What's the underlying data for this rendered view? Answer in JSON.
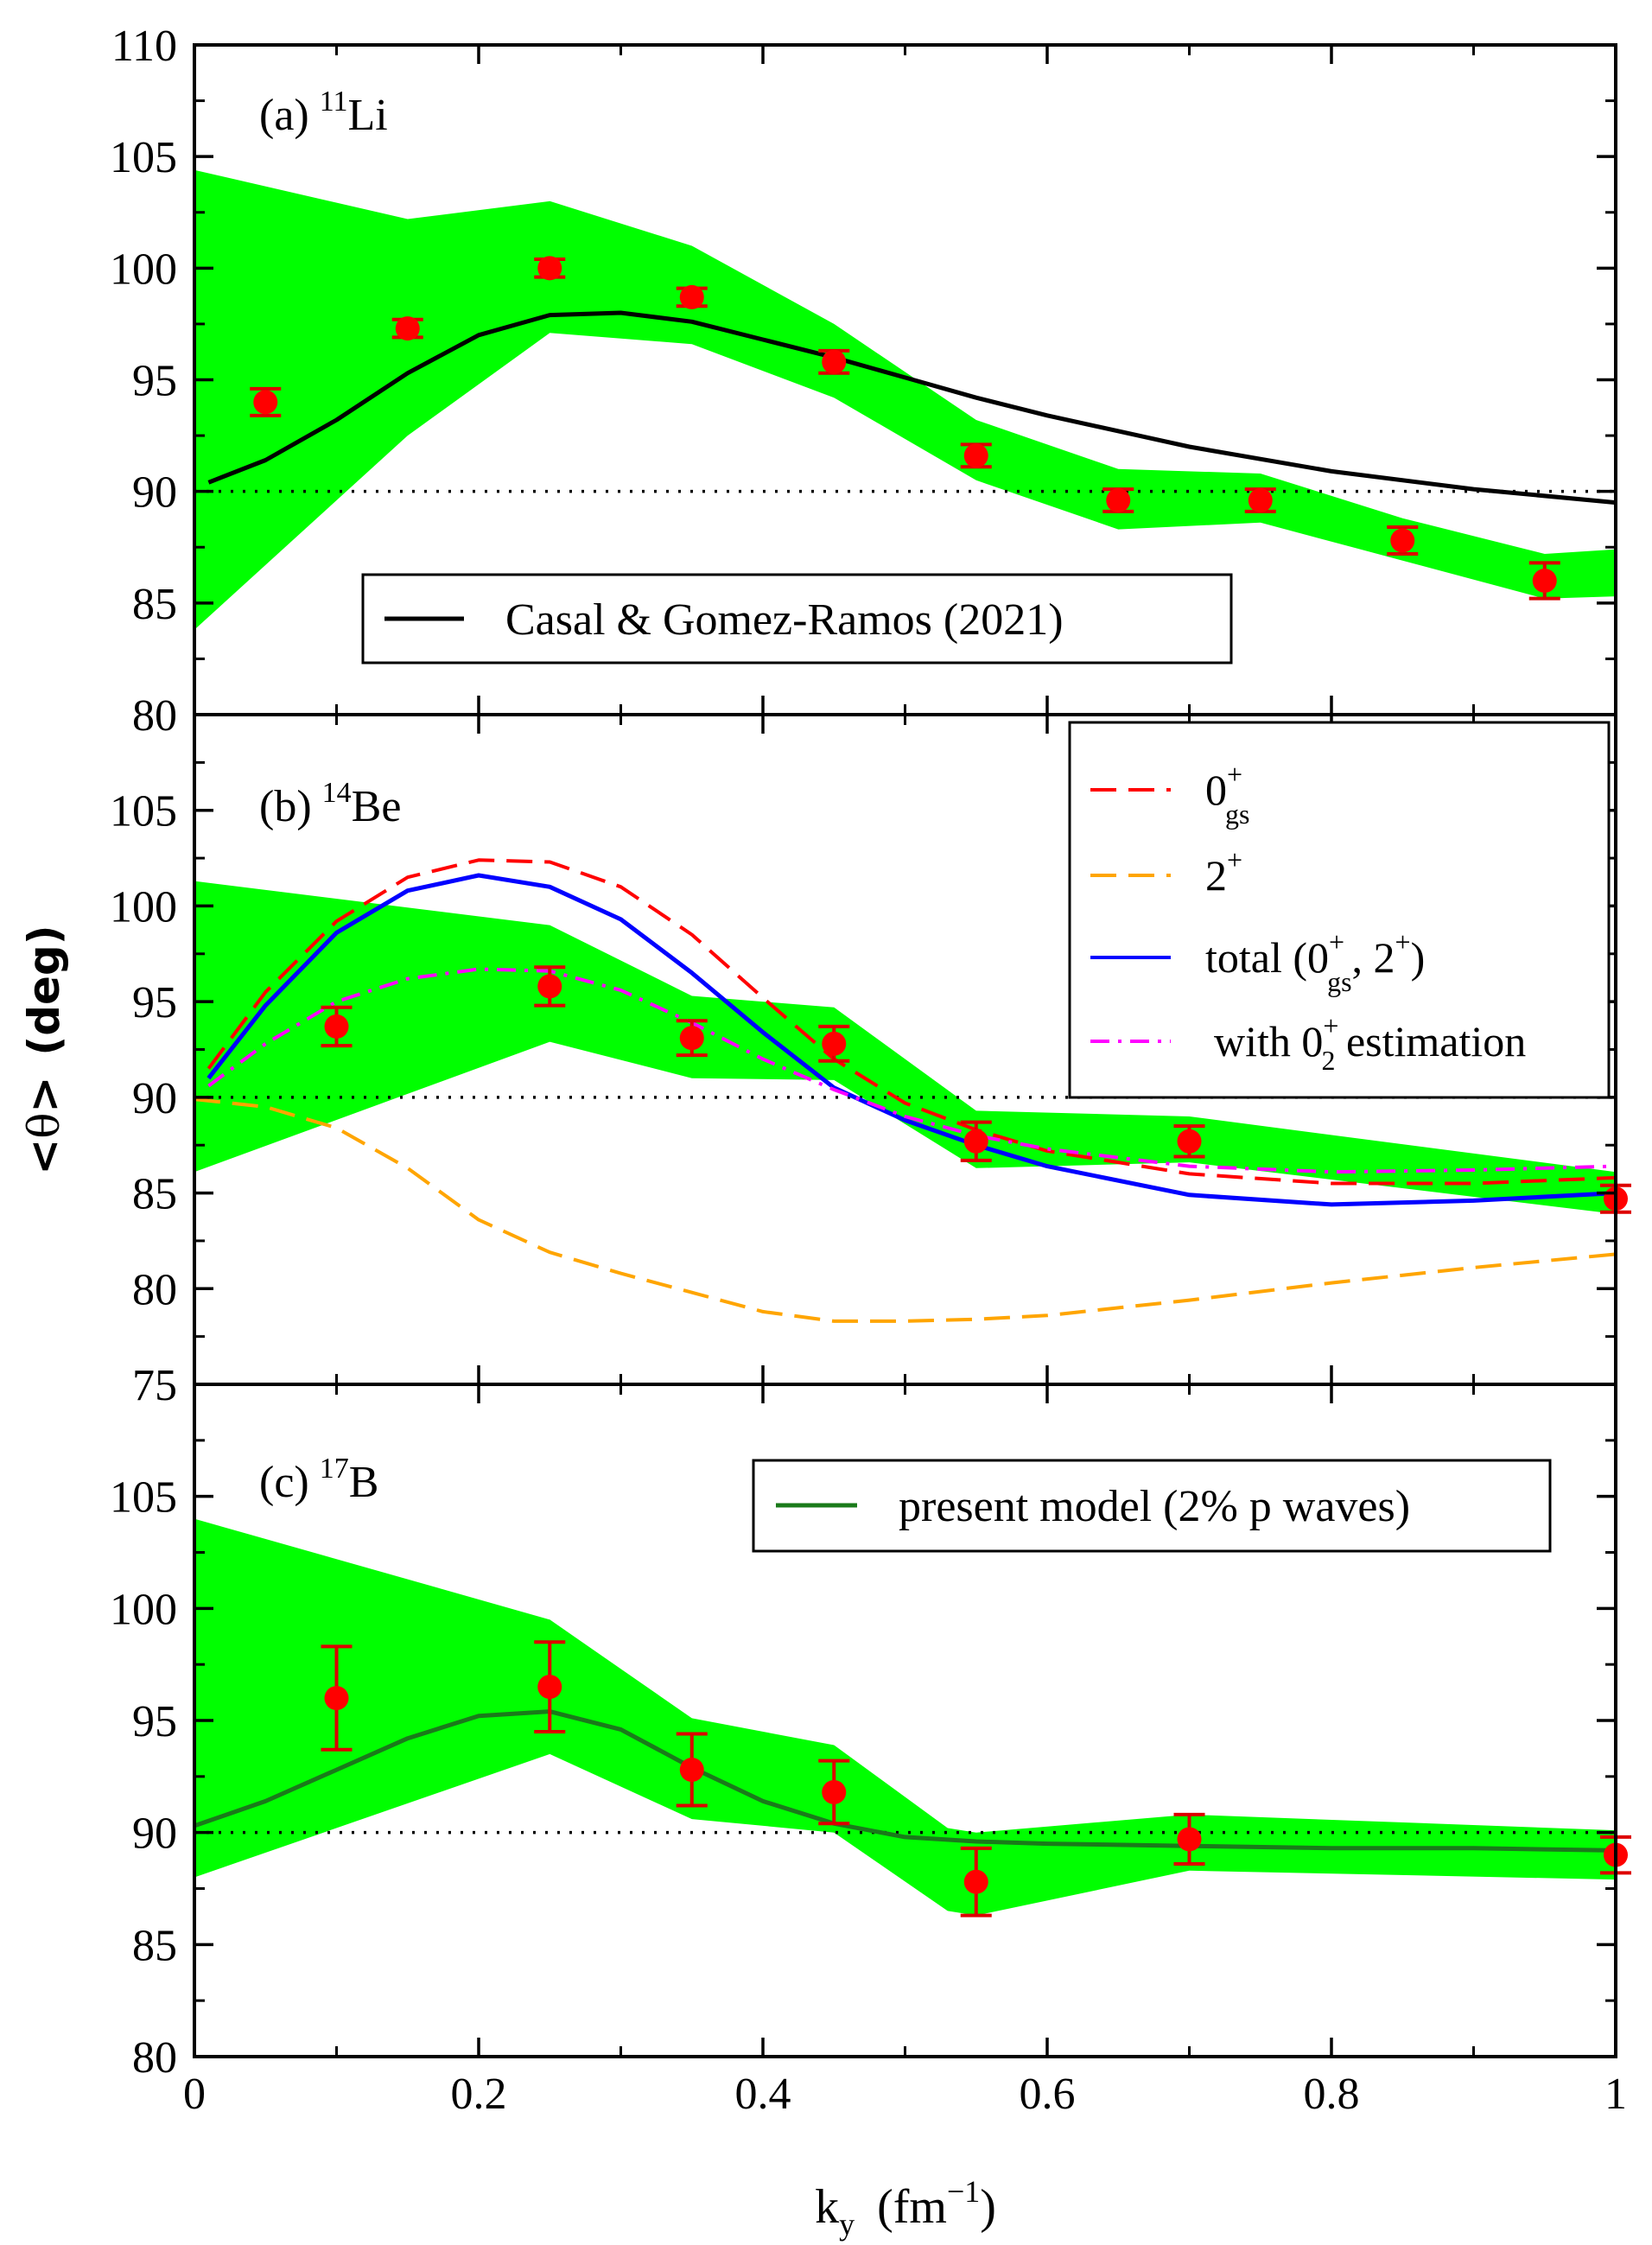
{
  "figure": {
    "xlabel_main": "k",
    "xlabel_sub": "y",
    "xlabel_unit_open": "(fm",
    "xlabel_unit_exp": "−1",
    "xlabel_unit_close": ")",
    "ylabel_open": "<",
    "ylabel_theta": "θ",
    "ylabel_close": ">",
    "ylabel_unit": "(deg)",
    "x_ticks": [
      "0",
      "0.2",
      "0.4",
      "0.6",
      "0.8",
      "1"
    ]
  },
  "colors": {
    "band": "#00ff00",
    "points": "#ff0000",
    "errorbars": "#dd0000",
    "reference_line": "#000000",
    "casal": "#000000",
    "gs": "#ff0000",
    "two_plus": "#ffa500",
    "total": "#0000ff",
    "estimation": "#ff00ff",
    "present_model": "#1a7a1a"
  },
  "chart_data": [
    {
      "type": "line",
      "panel": "a",
      "label_prefix": "(a)",
      "nucleus_mass": "11",
      "nucleus_symbol": "Li",
      "xlim": [
        0,
        1
      ],
      "ylim": [
        80,
        110
      ],
      "y_ticks": [
        "80",
        "85",
        "90",
        "95",
        "100",
        "105",
        "110"
      ],
      "reference_y": 90,
      "band": {
        "x": [
          0.0,
          0.15,
          0.25,
          0.35,
          0.45,
          0.55,
          0.65,
          0.75,
          0.85,
          0.95,
          1.0
        ],
        "upper": [
          104.4,
          102.2,
          103.0,
          101.0,
          97.5,
          93.2,
          91.0,
          90.8,
          88.8,
          87.2,
          87.4
        ],
        "lower": [
          83.8,
          92.5,
          97.1,
          96.6,
          94.2,
          90.5,
          88.3,
          88.6,
          86.9,
          85.2,
          85.3
        ]
      },
      "points": {
        "x": [
          0.05,
          0.15,
          0.25,
          0.35,
          0.45,
          0.55,
          0.65,
          0.75,
          0.85,
          0.95
        ],
        "y": [
          94.0,
          97.3,
          100.0,
          98.7,
          95.8,
          91.6,
          89.6,
          89.6,
          87.8,
          86.0
        ],
        "err": [
          0.6,
          0.4,
          0.4,
          0.4,
          0.5,
          0.5,
          0.5,
          0.5,
          0.6,
          0.8
        ]
      },
      "series": [
        {
          "name": "Casal & Gomez-Ramos (2021)",
          "color_key": "casal",
          "dash": "solid",
          "x": [
            0.01,
            0.05,
            0.1,
            0.15,
            0.2,
            0.25,
            0.3,
            0.35,
            0.4,
            0.45,
            0.5,
            0.55,
            0.6,
            0.7,
            0.8,
            0.9,
            1.0
          ],
          "y": [
            90.4,
            91.4,
            93.2,
            95.3,
            97.0,
            97.9,
            98.0,
            97.6,
            96.8,
            96.0,
            95.1,
            94.2,
            93.4,
            92.0,
            90.9,
            90.1,
            89.5
          ]
        }
      ],
      "legend": {
        "entries": [
          "Casal & Gomez-Ramos (2021)"
        ]
      }
    },
    {
      "type": "line",
      "panel": "b",
      "label_prefix": "(b)",
      "nucleus_mass": "14",
      "nucleus_symbol": "Be",
      "xlim": [
        0,
        1
      ],
      "ylim": [
        75,
        110
      ],
      "y_ticks": [
        "75",
        "80",
        "85",
        "90",
        "95",
        "100",
        "105"
      ],
      "reference_y": 90,
      "band": {
        "x": [
          0.0,
          0.25,
          0.35,
          0.45,
          0.55,
          0.7,
          1.0
        ],
        "upper": [
          101.3,
          99.0,
          95.3,
          94.7,
          89.3,
          89.0,
          86.1
        ],
        "lower": [
          86.1,
          92.9,
          91.0,
          90.9,
          86.3,
          86.6,
          83.9
        ]
      },
      "points": {
        "x": [
          0.1,
          0.25,
          0.35,
          0.45,
          0.55,
          0.7,
          1.0
        ],
        "y": [
          93.7,
          95.8,
          93.1,
          92.8,
          87.7,
          87.7,
          84.7
        ],
        "err": [
          1.0,
          1.0,
          0.9,
          0.9,
          1.0,
          0.8,
          0.7
        ]
      },
      "series": [
        {
          "name": "0gs+",
          "color_key": "gs",
          "dash": "dashed",
          "x": [
            0.01,
            0.05,
            0.1,
            0.15,
            0.2,
            0.25,
            0.3,
            0.35,
            0.4,
            0.45,
            0.5,
            0.55,
            0.6,
            0.7,
            0.8,
            0.9,
            1.0
          ],
          "y": [
            91.5,
            95.5,
            99.2,
            101.5,
            102.4,
            102.3,
            101.0,
            98.5,
            95.2,
            92.0,
            89.7,
            88.3,
            87.2,
            86.0,
            85.5,
            85.5,
            85.8
          ]
        },
        {
          "name": "2+",
          "color_key": "two_plus",
          "dash": "dashed",
          "x": [
            0.0,
            0.05,
            0.1,
            0.15,
            0.2,
            0.25,
            0.3,
            0.35,
            0.4,
            0.45,
            0.5,
            0.55,
            0.6,
            0.7,
            0.8,
            0.9,
            1.0
          ],
          "y": [
            89.9,
            89.5,
            88.4,
            86.3,
            83.6,
            81.9,
            80.8,
            79.8,
            78.8,
            78.3,
            78.3,
            78.4,
            78.6,
            79.4,
            80.3,
            81.1,
            81.8
          ]
        },
        {
          "name": "total (0gs+, 2+)",
          "color_key": "total",
          "dash": "solid",
          "x": [
            0.01,
            0.05,
            0.1,
            0.15,
            0.2,
            0.25,
            0.3,
            0.35,
            0.4,
            0.45,
            0.5,
            0.55,
            0.6,
            0.7,
            0.8,
            0.9,
            1.0
          ],
          "y": [
            91.0,
            94.8,
            98.6,
            100.8,
            101.6,
            101.0,
            99.3,
            96.5,
            93.4,
            90.5,
            88.8,
            87.5,
            86.4,
            84.9,
            84.4,
            84.6,
            85.0
          ]
        },
        {
          "name": "with 02+ estimation",
          "color_key": "estimation",
          "dash": "dashdot",
          "x": [
            0.01,
            0.05,
            0.1,
            0.15,
            0.2,
            0.25,
            0.3,
            0.35,
            0.4,
            0.45,
            0.5,
            0.55,
            0.6,
            0.7,
            0.8,
            0.9,
            1.0
          ],
          "y": [
            90.6,
            92.8,
            95.0,
            96.2,
            96.7,
            96.6,
            95.6,
            93.9,
            92.0,
            90.4,
            89.0,
            88.0,
            87.3,
            86.4,
            86.1,
            86.2,
            86.4
          ]
        }
      ],
      "legend": {
        "entry1_main": "0",
        "entry1_sup": "+",
        "entry1_sub": "gs",
        "entry2_main": "2",
        "entry2_sup": "+",
        "entry3_prefix": "total (0",
        "entry3_sup1": "+",
        "entry3_sub1": "gs",
        "entry3_mid": ", 2",
        "entry3_sup2": "+",
        "entry3_suffix": ")",
        "entry4_prefix": "with 0",
        "entry4_sup": "+",
        "entry4_sub": "2",
        "entry4_suffix": " estimation"
      }
    },
    {
      "type": "line",
      "panel": "c",
      "label_prefix": "(c)",
      "nucleus_mass": "17",
      "nucleus_symbol": "B",
      "xlim": [
        0,
        1
      ],
      "ylim": [
        80,
        110
      ],
      "y_ticks": [
        "80",
        "85",
        "90",
        "95",
        "100",
        "105"
      ],
      "reference_y": 90,
      "band": {
        "x": [
          0.0,
          0.25,
          0.35,
          0.45,
          0.53,
          0.55,
          0.7,
          1.0
        ],
        "upper": [
          104.0,
          99.5,
          95.1,
          93.9,
          90.2,
          90.0,
          90.8,
          90.1
        ],
        "lower": [
          88.0,
          93.5,
          90.6,
          90.0,
          86.5,
          86.3,
          88.3,
          87.9
        ]
      },
      "points": {
        "x": [
          0.1,
          0.25,
          0.35,
          0.45,
          0.55,
          0.7,
          1.0
        ],
        "y": [
          96.0,
          96.5,
          92.8,
          91.8,
          87.8,
          89.7,
          89.0
        ],
        "err": [
          2.3,
          2.0,
          1.6,
          1.4,
          1.5,
          1.1,
          0.8
        ]
      },
      "series": [
        {
          "name": "present model (2% p waves)",
          "color_key": "present_model",
          "dash": "solid",
          "x": [
            0.0,
            0.05,
            0.1,
            0.15,
            0.2,
            0.25,
            0.3,
            0.35,
            0.4,
            0.45,
            0.5,
            0.55,
            0.6,
            0.7,
            0.8,
            0.9,
            1.0
          ],
          "y": [
            90.3,
            91.4,
            92.8,
            94.2,
            95.2,
            95.4,
            94.6,
            92.9,
            91.4,
            90.4,
            89.8,
            89.6,
            89.5,
            89.4,
            89.3,
            89.3,
            89.2
          ]
        }
      ],
      "legend": {
        "entries": [
          "present model (2% p waves)"
        ]
      }
    }
  ]
}
